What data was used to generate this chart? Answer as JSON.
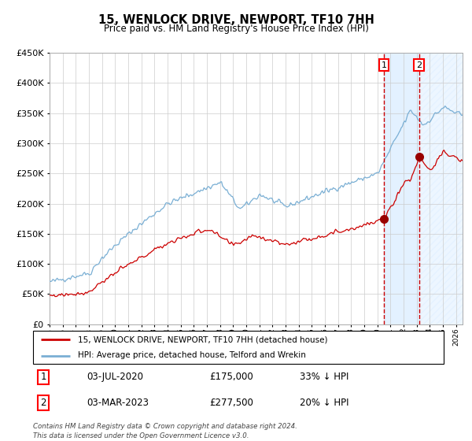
{
  "title": "15, WENLOCK DRIVE, NEWPORT, TF10 7HH",
  "subtitle": "Price paid vs. HM Land Registry's House Price Index (HPI)",
  "legend_line1": "15, WENLOCK DRIVE, NEWPORT, TF10 7HH (detached house)",
  "legend_line2": "HPI: Average price, detached house, Telford and Wrekin",
  "annotation1_label": "1",
  "annotation1_date": "03-JUL-2020",
  "annotation1_price": "£175,000",
  "annotation1_hpi": "33% ↓ HPI",
  "annotation2_label": "2",
  "annotation2_date": "03-MAR-2023",
  "annotation2_price": "£277,500",
  "annotation2_hpi": "20% ↓ HPI",
  "footnote": "Contains HM Land Registry data © Crown copyright and database right 2024.\nThis data is licensed under the Open Government Licence v3.0.",
  "hpi_color": "#7aafd4",
  "price_color": "#cc0000",
  "marker_color": "#990000",
  "vline_color": "#cc0000",
  "bg_shade_color": "#ddeeff",
  "grid_color": "#cccccc",
  "ylim": [
    0,
    450000
  ],
  "xlim_start": 1995.0,
  "xlim_end": 2026.5,
  "sale1_x": 2020.5,
  "sale1_y": 175000,
  "sale2_x": 2023.17,
  "sale2_y": 277500
}
